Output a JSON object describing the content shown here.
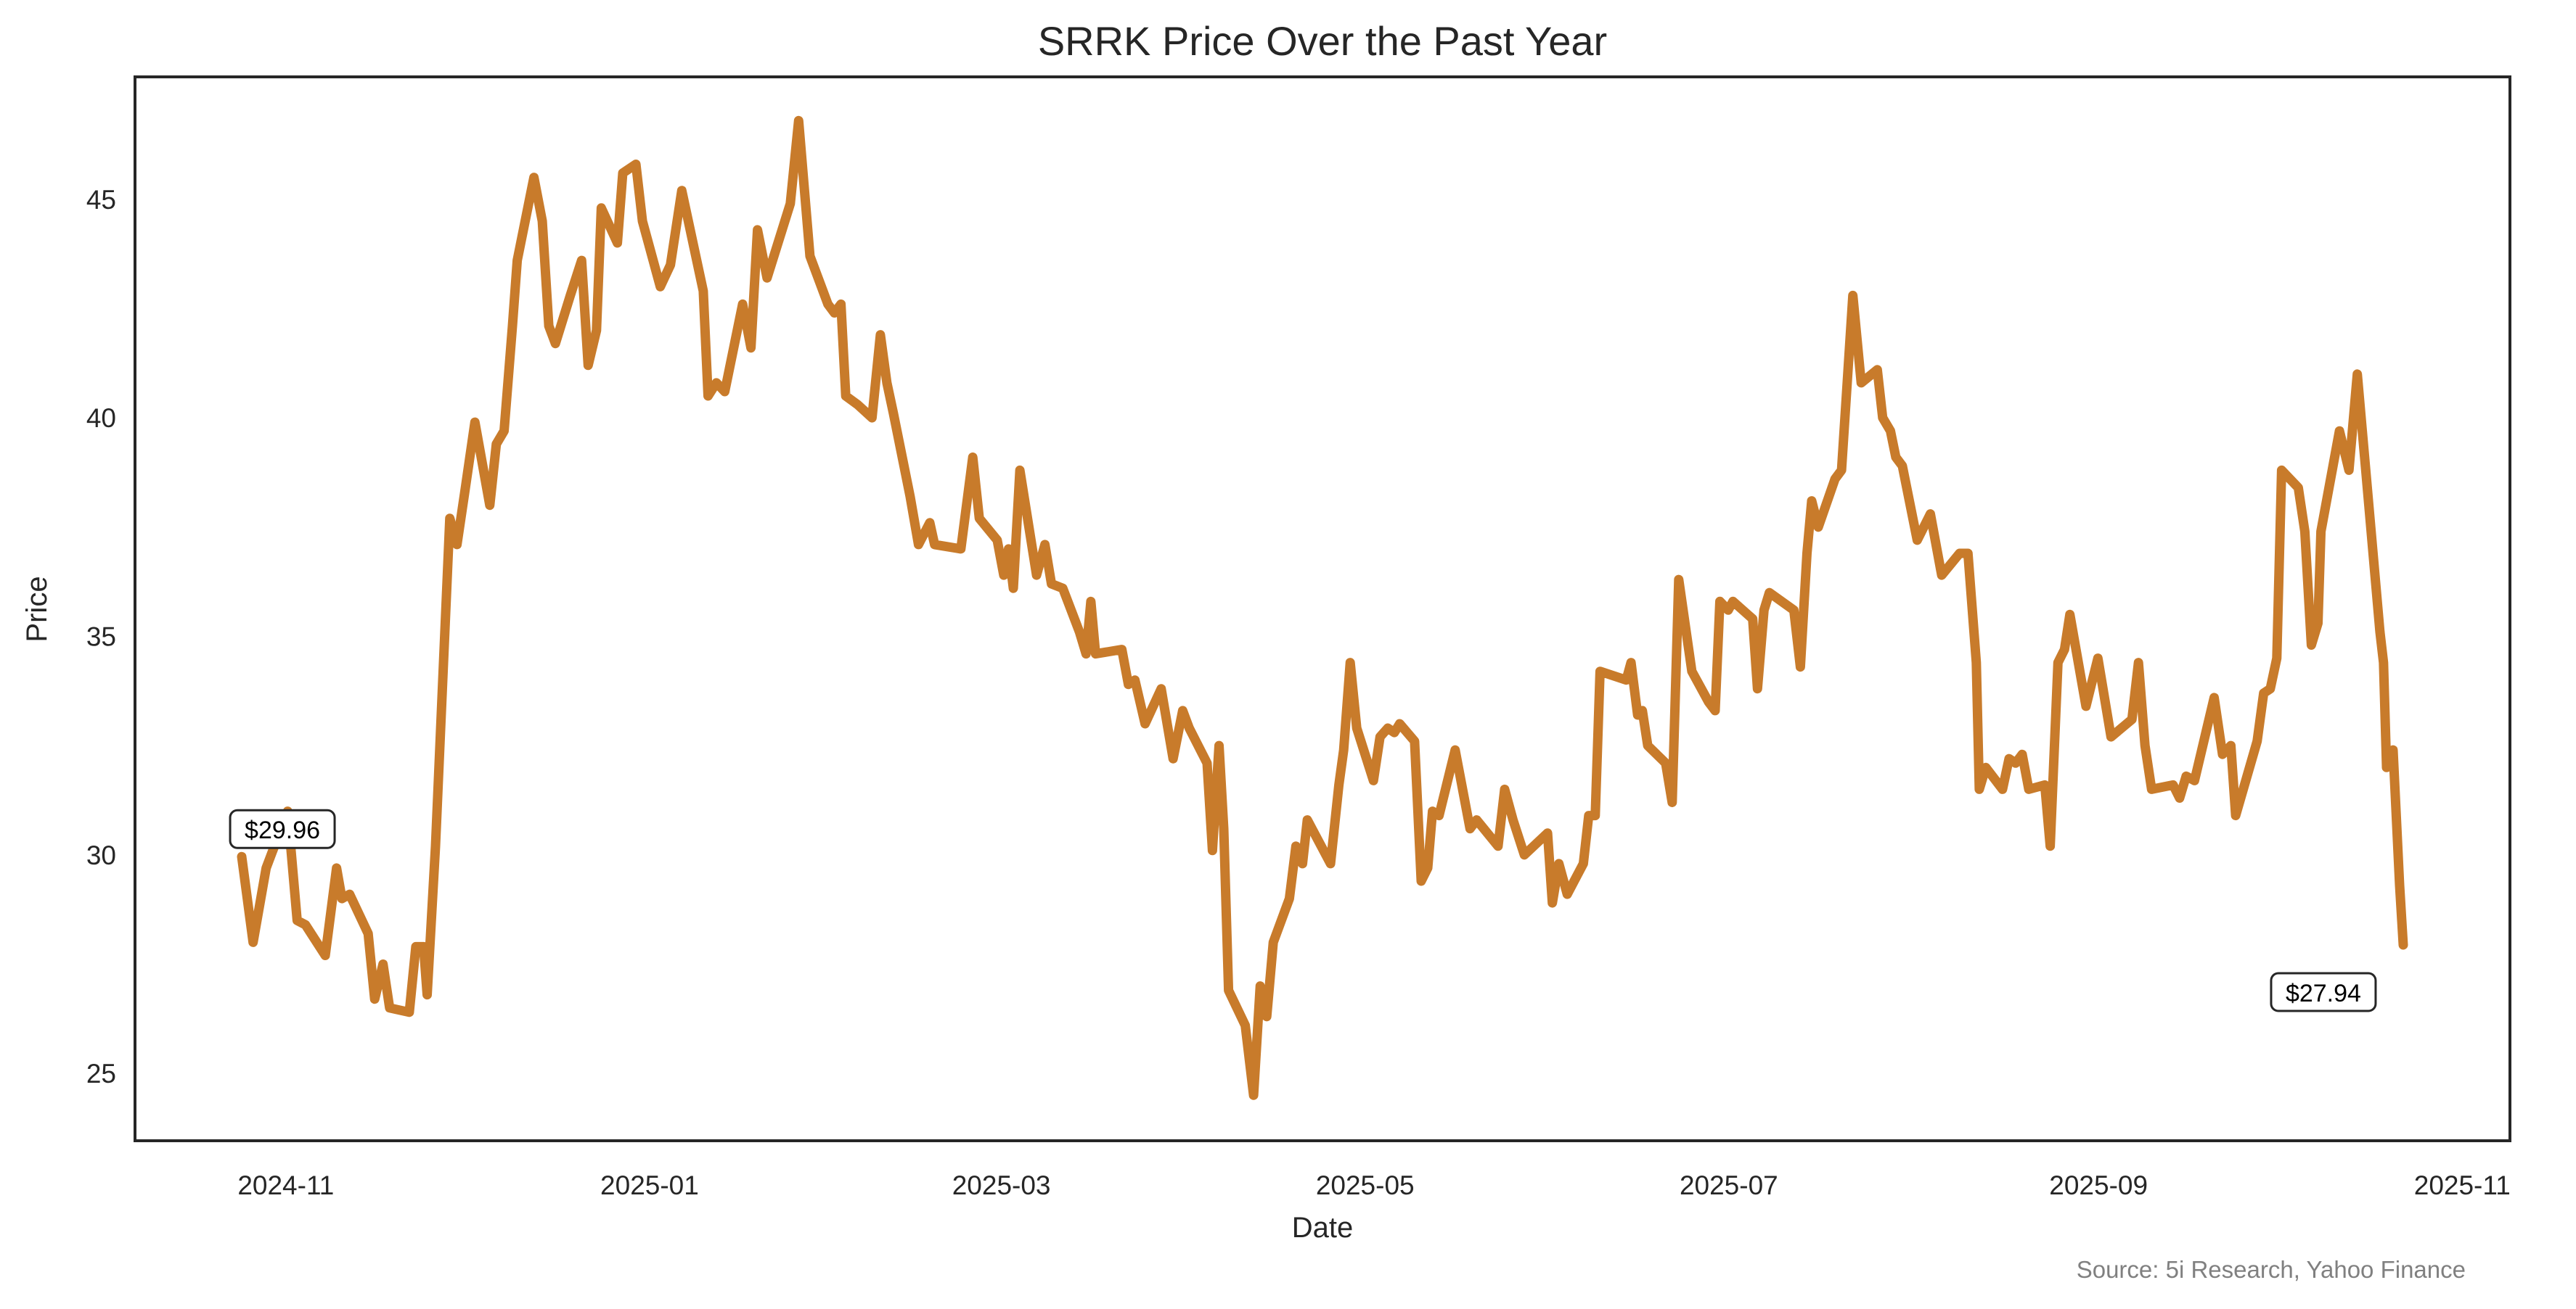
{
  "chart_data": {
    "type": "line",
    "title": "SRRK Price Over the Past Year",
    "xlabel": "Date",
    "ylabel": "Price",
    "source": "Source: 5i Research, Yahoo Finance",
    "x_units": "days since 2024-11-01",
    "x_origin": "2024-11-01",
    "xlim": [
      -25.3,
      373
    ],
    "ylim": [
      23.46,
      47.8
    ],
    "grid": false,
    "line_color": "#c87b2b",
    "x_ticks": [
      {
        "value": 0,
        "label": "2024-11"
      },
      {
        "value": 61,
        "label": "2025-01"
      },
      {
        "value": 120,
        "label": "2025-03"
      },
      {
        "value": 181,
        "label": "2025-05"
      },
      {
        "value": 242,
        "label": "2025-07"
      },
      {
        "value": 304,
        "label": "2025-09"
      },
      {
        "value": 365,
        "label": "2025-11"
      }
    ],
    "y_ticks": [
      {
        "value": 25,
        "label": "25"
      },
      {
        "value": 30,
        "label": "30"
      },
      {
        "value": 35,
        "label": "35"
      },
      {
        "value": 40,
        "label": "40"
      },
      {
        "value": 45,
        "label": "45"
      }
    ],
    "annotations": [
      {
        "x": -7.4,
        "y": 29.96,
        "label": "$29.96"
      },
      {
        "x": 355.1,
        "y": 27.94,
        "label": "$27.94"
      }
    ],
    "series": [
      {
        "name": "SRRK",
        "points": [
          [
            -7.4,
            29.96
          ],
          [
            -5.5,
            28.0
          ],
          [
            -3.3,
            29.7
          ],
          [
            0.3,
            31.0
          ],
          [
            1.9,
            28.5
          ],
          [
            3.3,
            28.4
          ],
          [
            6.6,
            27.7
          ],
          [
            8.5,
            29.7
          ],
          [
            9.4,
            29.0
          ],
          [
            10.7,
            29.1
          ],
          [
            13.8,
            28.2
          ],
          [
            14.9,
            26.7
          ],
          [
            16.3,
            27.5
          ],
          [
            17.4,
            26.5
          ],
          [
            20.7,
            26.4
          ],
          [
            21.8,
            27.9
          ],
          [
            23.1,
            27.9
          ],
          [
            23.7,
            26.8
          ],
          [
            25.1,
            30.2
          ],
          [
            27.5,
            37.7
          ],
          [
            28.7,
            37.1
          ],
          [
            30.0,
            38.3
          ],
          [
            31.7,
            39.9
          ],
          [
            34.2,
            38.0
          ],
          [
            35.3,
            39.4
          ],
          [
            36.6,
            39.7
          ],
          [
            38.0,
            42.1
          ],
          [
            38.8,
            43.6
          ],
          [
            41.6,
            45.5
          ],
          [
            43.0,
            44.5
          ],
          [
            44.1,
            42.1
          ],
          [
            45.2,
            41.7
          ],
          [
            47.7,
            42.8
          ],
          [
            49.6,
            43.6
          ],
          [
            50.7,
            41.2
          ],
          [
            52.1,
            42.0
          ],
          [
            52.9,
            44.8
          ],
          [
            55.6,
            44.0
          ],
          [
            56.5,
            45.6
          ],
          [
            58.7,
            45.8
          ],
          [
            59.8,
            44.5
          ],
          [
            62.8,
            43.0
          ],
          [
            64.5,
            43.5
          ],
          [
            66.4,
            45.2
          ],
          [
            70.0,
            42.9
          ],
          [
            70.8,
            40.5
          ],
          [
            72.2,
            40.8
          ],
          [
            73.6,
            40.6
          ],
          [
            76.6,
            42.6
          ],
          [
            78.0,
            41.6
          ],
          [
            79.1,
            44.3
          ],
          [
            80.7,
            43.2
          ],
          [
            84.6,
            44.9
          ],
          [
            86.0,
            46.8
          ],
          [
            87.9,
            43.7
          ],
          [
            90.9,
            42.6
          ],
          [
            92.0,
            42.4
          ],
          [
            93.1,
            42.6
          ],
          [
            93.9,
            40.5
          ],
          [
            95.9,
            40.3
          ],
          [
            98.3,
            40.0
          ],
          [
            99.7,
            41.9
          ],
          [
            100.8,
            40.8
          ],
          [
            101.9,
            40.1
          ],
          [
            104.7,
            38.2
          ],
          [
            106.1,
            37.1
          ],
          [
            108.0,
            37.6
          ],
          [
            108.8,
            37.1
          ],
          [
            113.2,
            37.0
          ],
          [
            115.2,
            39.1
          ],
          [
            116.3,
            37.7
          ],
          [
            119.3,
            37.2
          ],
          [
            120.4,
            36.4
          ],
          [
            121.2,
            37.0
          ],
          [
            122.0,
            36.1
          ],
          [
            123.1,
            38.8
          ],
          [
            125.9,
            36.4
          ],
          [
            127.3,
            37.1
          ],
          [
            128.4,
            36.2
          ],
          [
            130.3,
            36.1
          ],
          [
            133.1,
            35.1
          ],
          [
            134.2,
            34.6
          ],
          [
            135.0,
            35.8
          ],
          [
            135.8,
            34.6
          ],
          [
            140.2,
            34.7
          ],
          [
            141.3,
            33.9
          ],
          [
            142.4,
            34.0
          ],
          [
            144.1,
            33.0
          ],
          [
            146.8,
            33.8
          ],
          [
            148.8,
            32.2
          ],
          [
            150.4,
            33.3
          ],
          [
            151.5,
            32.9
          ],
          [
            154.5,
            32.1
          ],
          [
            155.4,
            30.1
          ],
          [
            156.5,
            32.5
          ],
          [
            157.3,
            30.6
          ],
          [
            158.1,
            26.9
          ],
          [
            160.9,
            26.1
          ],
          [
            162.3,
            24.5
          ],
          [
            163.4,
            27.0
          ],
          [
            164.5,
            26.3
          ],
          [
            165.6,
            28.0
          ],
          [
            168.3,
            29.0
          ],
          [
            169.4,
            30.2
          ],
          [
            170.5,
            29.8
          ],
          [
            171.3,
            30.8
          ],
          [
            175.2,
            29.8
          ],
          [
            176.6,
            31.6
          ],
          [
            177.4,
            32.4
          ],
          [
            178.5,
            34.4
          ],
          [
            179.6,
            32.9
          ],
          [
            182.4,
            31.7
          ],
          [
            183.5,
            32.7
          ],
          [
            184.8,
            32.9
          ],
          [
            185.9,
            32.8
          ],
          [
            186.8,
            33.0
          ],
          [
            189.3,
            32.6
          ],
          [
            190.4,
            29.4
          ],
          [
            191.5,
            29.7
          ],
          [
            192.3,
            31.0
          ],
          [
            193.4,
            30.9
          ],
          [
            196.1,
            32.4
          ],
          [
            198.6,
            30.6
          ],
          [
            199.7,
            30.8
          ],
          [
            203.3,
            30.2
          ],
          [
            204.4,
            31.5
          ],
          [
            205.8,
            30.8
          ],
          [
            207.7,
            30.0
          ],
          [
            211.6,
            30.5
          ],
          [
            212.4,
            28.9
          ],
          [
            213.5,
            29.8
          ],
          [
            214.9,
            29.1
          ],
          [
            217.6,
            29.8
          ],
          [
            218.5,
            30.9
          ],
          [
            219.6,
            30.9
          ],
          [
            220.4,
            34.2
          ],
          [
            224.8,
            34.0
          ],
          [
            225.6,
            34.4
          ],
          [
            226.7,
            33.2
          ],
          [
            227.5,
            33.3
          ],
          [
            228.4,
            32.5
          ],
          [
            231.4,
            32.1
          ],
          [
            232.5,
            31.2
          ],
          [
            233.6,
            36.3
          ],
          [
            235.8,
            34.2
          ],
          [
            238.6,
            33.5
          ],
          [
            239.7,
            33.3
          ],
          [
            240.5,
            35.8
          ],
          [
            241.9,
            35.6
          ],
          [
            242.7,
            35.8
          ],
          [
            246.0,
            35.4
          ],
          [
            246.8,
            33.8
          ],
          [
            247.9,
            35.6
          ],
          [
            248.8,
            36.0
          ],
          [
            252.9,
            35.6
          ],
          [
            254.0,
            34.3
          ],
          [
            255.1,
            36.9
          ],
          [
            255.9,
            38.1
          ],
          [
            257.0,
            37.5
          ],
          [
            259.8,
            38.6
          ],
          [
            260.9,
            38.8
          ],
          [
            262.8,
            42.8
          ],
          [
            264.2,
            40.8
          ],
          [
            266.9,
            41.1
          ],
          [
            267.8,
            40.0
          ],
          [
            269.1,
            39.7
          ],
          [
            270.0,
            39.1
          ],
          [
            271.1,
            38.9
          ],
          [
            273.6,
            37.2
          ],
          [
            275.8,
            37.8
          ],
          [
            277.7,
            36.4
          ],
          [
            280.7,
            36.9
          ],
          [
            282.1,
            36.9
          ],
          [
            283.5,
            34.4
          ],
          [
            284.0,
            31.5
          ],
          [
            285.1,
            32.0
          ],
          [
            287.9,
            31.5
          ],
          [
            289.0,
            32.2
          ],
          [
            290.1,
            32.1
          ],
          [
            291.2,
            32.3
          ],
          [
            292.3,
            31.5
          ],
          [
            295.0,
            31.6
          ],
          [
            295.9,
            30.2
          ],
          [
            297.2,
            34.4
          ],
          [
            298.3,
            34.7
          ],
          [
            299.2,
            35.5
          ],
          [
            301.9,
            33.4
          ],
          [
            303.9,
            34.5
          ],
          [
            306.1,
            32.7
          ],
          [
            309.6,
            33.1
          ],
          [
            310.7,
            34.4
          ],
          [
            311.8,
            32.5
          ],
          [
            312.9,
            31.5
          ],
          [
            316.5,
            31.6
          ],
          [
            317.6,
            31.3
          ],
          [
            318.7,
            31.8
          ],
          [
            320.1,
            31.7
          ],
          [
            323.4,
            33.6
          ],
          [
            324.8,
            32.3
          ],
          [
            326.2,
            32.5
          ],
          [
            327.0,
            30.9
          ],
          [
            330.6,
            32.6
          ],
          [
            331.7,
            33.7
          ],
          [
            332.8,
            33.8
          ],
          [
            333.9,
            34.5
          ],
          [
            334.7,
            38.8
          ],
          [
            337.5,
            38.4
          ],
          [
            338.6,
            37.4
          ],
          [
            339.7,
            34.8
          ],
          [
            340.8,
            35.3
          ],
          [
            341.3,
            37.4
          ],
          [
            344.4,
            39.7
          ],
          [
            346.0,
            38.8
          ],
          [
            347.4,
            41.0
          ],
          [
            351.2,
            35.1
          ],
          [
            351.8,
            34.4
          ],
          [
            352.3,
            32.0
          ],
          [
            353.4,
            32.4
          ],
          [
            354.5,
            29.3
          ],
          [
            355.1,
            27.94
          ]
        ]
      }
    ]
  }
}
